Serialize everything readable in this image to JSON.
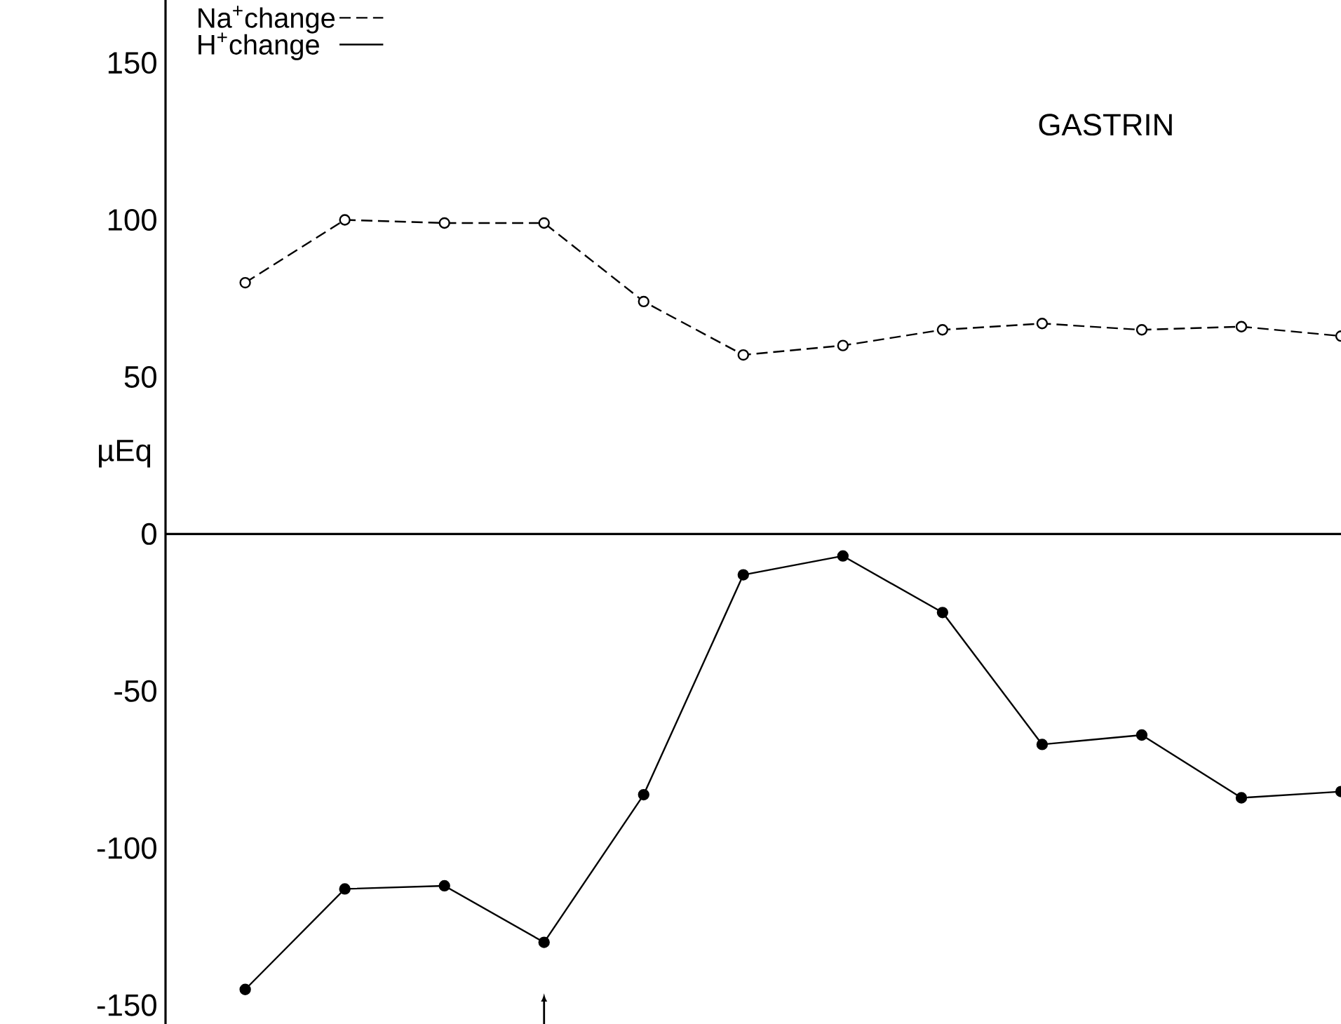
{
  "chart_data": {
    "type": "line",
    "title": "GASTRIN",
    "ylabel": "µEq",
    "categories": [
      null,
      null,
      null,
      null,
      null,
      null,
      null,
      null,
      null,
      null,
      null,
      null
    ],
    "series": [
      {
        "name": "Na$^{+}$change",
        "color": "#000000",
        "line_style": "dashed",
        "values": [
          80,
          100,
          99,
          99,
          74,
          57,
          60,
          65,
          67,
          65,
          66,
          63
        ]
      },
      {
        "name": "H$^{+}$change",
        "color": "#000000",
        "line_style": "solid",
        "values": [
          -145,
          -113,
          -112,
          -130,
          -83,
          -13,
          -7,
          -25,
          -67,
          -64,
          -84,
          -82
        ]
      }
    ],
    "ylim": [
      -156,
      170
    ],
    "yticks": [
      -150,
      -100,
      -50,
      0,
      50,
      100,
      150
    ],
    "marker": "circle",
    "legend": "top left"
  }
}
